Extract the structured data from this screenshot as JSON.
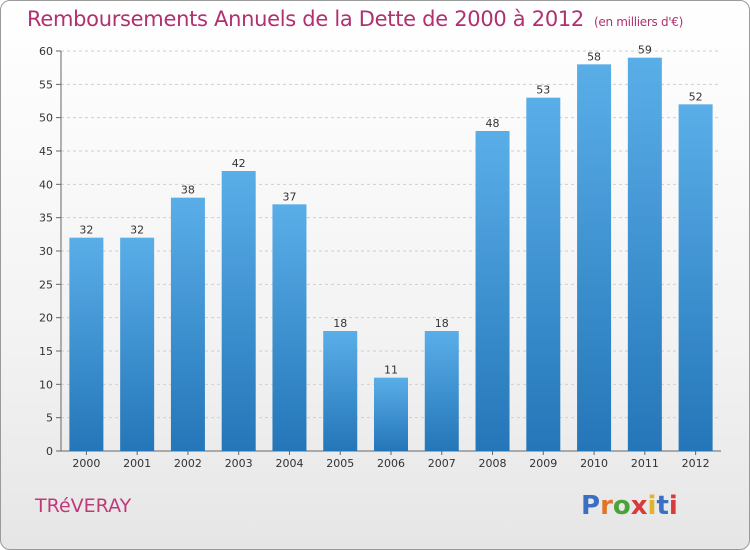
{
  "header": {
    "title": "Remboursements Annuels de la Dette de 2000 à 2012",
    "subtitle": "(en milliers d'€)"
  },
  "footer": {
    "commune": "TRéVERAY",
    "logo_text": "Proxiti"
  },
  "colors": {
    "bar_top": "#5aaee8",
    "bar_bottom": "#2476b8",
    "title": "#b03070"
  },
  "chart_data": {
    "type": "bar",
    "title": "Remboursements Annuels de la Dette de 2000 à 2012",
    "subtitle": "(en milliers d'€)",
    "xlabel": "",
    "ylabel": "",
    "categories": [
      "2000",
      "2001",
      "2002",
      "2003",
      "2004",
      "2005",
      "2006",
      "2007",
      "2008",
      "2009",
      "2010",
      "2011",
      "2012"
    ],
    "values": [
      32,
      32,
      38,
      42,
      37,
      18,
      11,
      18,
      48,
      53,
      58,
      59,
      52
    ],
    "ylim": [
      0,
      60
    ],
    "yticks": [
      0,
      5,
      10,
      15,
      20,
      25,
      30,
      35,
      40,
      45,
      50,
      55,
      60
    ],
    "grid": true,
    "data_labels": true
  }
}
